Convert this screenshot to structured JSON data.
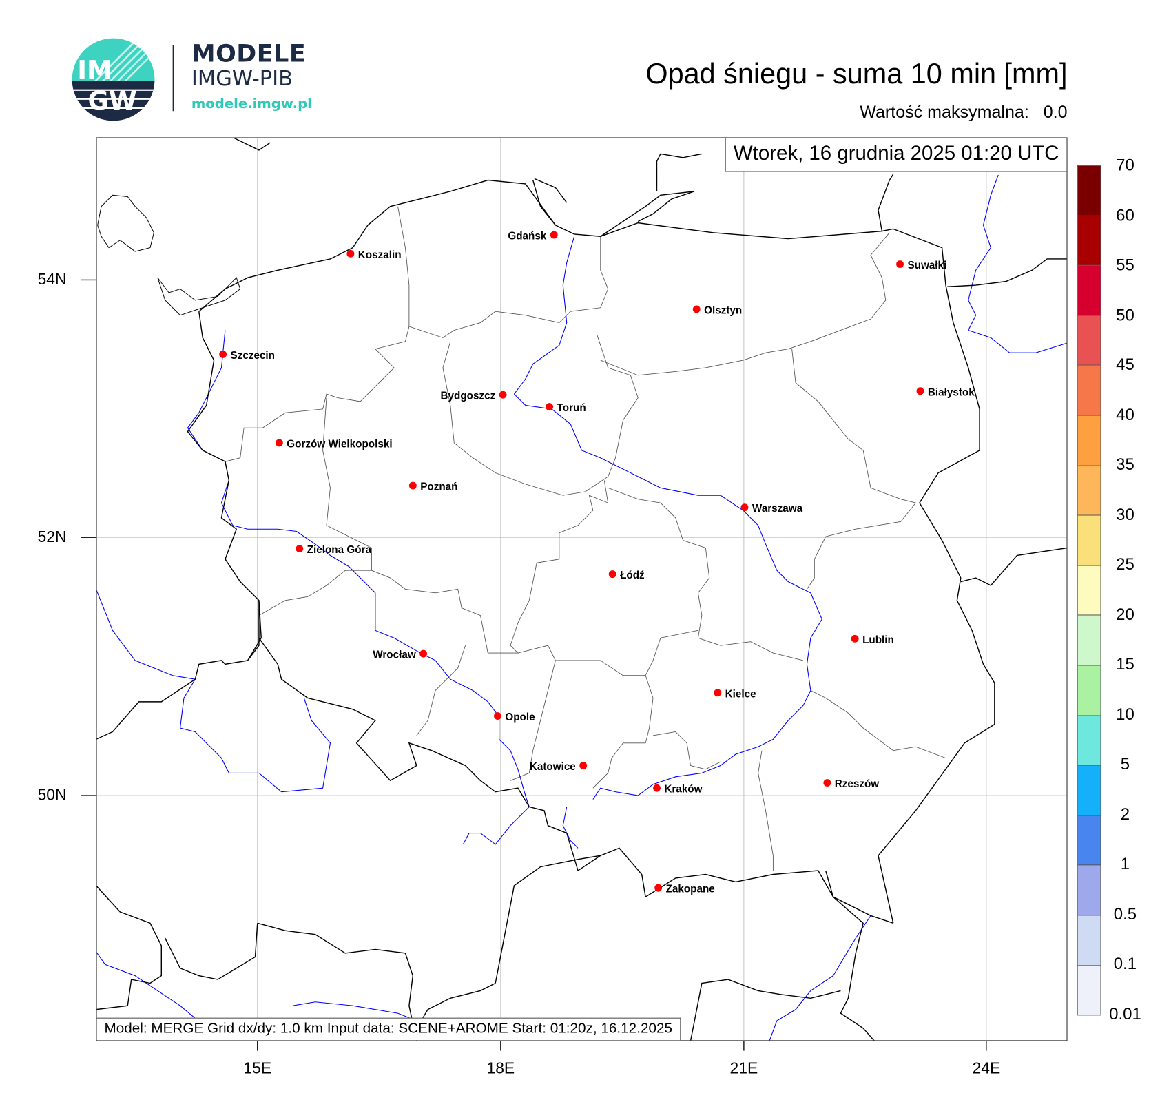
{
  "logo": {
    "badge_text_top": "IM",
    "badge_text_bottom": "GW",
    "name": "MODELE",
    "org": "IMGW-PIB",
    "url": "modele.imgw.pl"
  },
  "header": {
    "title": "Opad śniegu - suma 10 min [mm]",
    "max_value_label": "Wartość maksymalna:",
    "max_value": "0.0"
  },
  "map": {
    "valid_time": "Wtorek, 16 grudnia 2025 01:20 UTC",
    "footer": "Model: MERGE   Grid dx/dy: 1.0 km   Input data: SCENE+AROME   Start: 01:20z, 16.12.2025",
    "lon_labels": [
      "15E",
      "18E",
      "21E",
      "24E"
    ],
    "lat_labels": [
      "54N",
      "52N",
      "50N"
    ],
    "cities": [
      "Gdańsk",
      "Koszalin",
      "Suwałki",
      "Olsztyn",
      "Szczecin",
      "Białystok",
      "Bydgoszcz",
      "Toruń",
      "Gorzów Wielkopolski",
      "Poznań",
      "Warszawa",
      "Zielona Góra",
      "Łódź",
      "Lublin",
      "Wrocław",
      "Kielce",
      "Opole",
      "Katowice",
      "Rzeszów",
      "Kraków",
      "Zakopane"
    ],
    "city_marker_color": "#ff0000",
    "river_color": "#0000ff",
    "field_values": "none above 0.01"
  },
  "colorbar": {
    "labels": [
      "70",
      "60",
      "55",
      "50",
      "45",
      "40",
      "35",
      "30",
      "25",
      "20",
      "15",
      "10",
      "5",
      "2",
      "1",
      "0.5",
      "0.1",
      "0.01"
    ],
    "colors": [
      "#7a0000",
      "#a80000",
      "#d6002f",
      "#e85252",
      "#f5774a",
      "#fca040",
      "#fdb75a",
      "#f9e07a",
      "#fdfbbe",
      "#cff7cc",
      "#aaf2a2",
      "#6ee8de",
      "#14b1fa",
      "#4985ee",
      "#9ea9ec",
      "#cfdbf3",
      "#eef1f9"
    ]
  }
}
